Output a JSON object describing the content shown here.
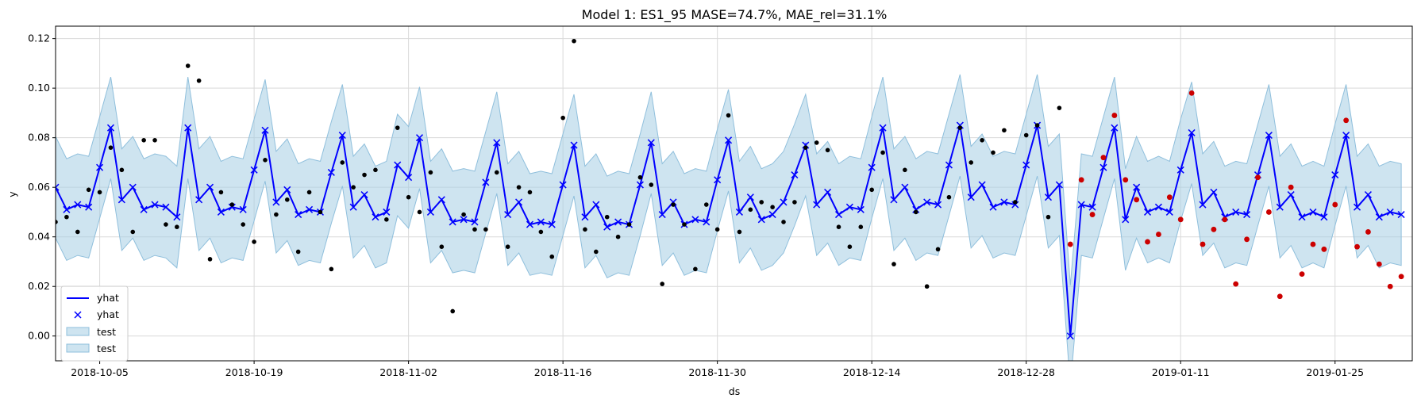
{
  "chart_data": {
    "type": "line",
    "title": "Model 1: ES1_95 MASE=74.7%, MAE_rel=31.1%",
    "xlabel": "ds",
    "ylabel": "y",
    "x_start": "2018-10-01",
    "x_end": "2019-02-01",
    "ylim": [
      -0.01,
      0.125
    ],
    "grid": true,
    "legend_position": "lower-left",
    "x_tick_labels": [
      "2018-10-05",
      "2018-10-19",
      "2018-11-02",
      "2018-11-16",
      "2018-11-30",
      "2018-12-14",
      "2018-12-28",
      "2019-01-11",
      "2019-01-25"
    ],
    "y_tick_labels": [
      "0.00",
      "0.02",
      "0.04",
      "0.06",
      "0.08",
      "0.10",
      "0.12"
    ],
    "legend": [
      "yhat",
      "yhat",
      "test",
      "test"
    ],
    "colors": {
      "line": "#0000ff",
      "band": "#a6cee3",
      "band_edge": "#8fbfdc",
      "actual": "#000000",
      "test_point": "#cc0000"
    },
    "yhat": [
      [
        "2018-10-01",
        0.06
      ],
      [
        "2018-10-02",
        0.051
      ],
      [
        "2018-10-03",
        0.053
      ],
      [
        "2018-10-04",
        0.052
      ],
      [
        "2018-10-05",
        0.068
      ],
      [
        "2018-10-06",
        0.084
      ],
      [
        "2018-10-07",
        0.055
      ],
      [
        "2018-10-08",
        0.06
      ],
      [
        "2018-10-09",
        0.051
      ],
      [
        "2018-10-10",
        0.053
      ],
      [
        "2018-10-11",
        0.052
      ],
      [
        "2018-10-12",
        0.048
      ],
      [
        "2018-10-13",
        0.084
      ],
      [
        "2018-10-14",
        0.055
      ],
      [
        "2018-10-15",
        0.06
      ],
      [
        "2018-10-16",
        0.05
      ],
      [
        "2018-10-17",
        0.052
      ],
      [
        "2018-10-18",
        0.051
      ],
      [
        "2018-10-19",
        0.067
      ],
      [
        "2018-10-20",
        0.083
      ],
      [
        "2018-10-21",
        0.054
      ],
      [
        "2018-10-22",
        0.059
      ],
      [
        "2018-10-23",
        0.049
      ],
      [
        "2018-10-24",
        0.051
      ],
      [
        "2018-10-25",
        0.05
      ],
      [
        "2018-10-26",
        0.066
      ],
      [
        "2018-10-27",
        0.081
      ],
      [
        "2018-10-28",
        0.052
      ],
      [
        "2018-10-29",
        0.057
      ],
      [
        "2018-10-30",
        0.048
      ],
      [
        "2018-10-31",
        0.05
      ],
      [
        "2018-11-01",
        0.069
      ],
      [
        "2018-11-02",
        0.064
      ],
      [
        "2018-11-03",
        0.08
      ],
      [
        "2018-11-04",
        0.05
      ],
      [
        "2018-11-05",
        0.055
      ],
      [
        "2018-11-06",
        0.046
      ],
      [
        "2018-11-07",
        0.047
      ],
      [
        "2018-11-08",
        0.046
      ],
      [
        "2018-11-09",
        0.062
      ],
      [
        "2018-11-10",
        0.078
      ],
      [
        "2018-11-11",
        0.049
      ],
      [
        "2018-11-12",
        0.054
      ],
      [
        "2018-11-13",
        0.045
      ],
      [
        "2018-11-14",
        0.046
      ],
      [
        "2018-11-15",
        0.045
      ],
      [
        "2018-11-16",
        0.061
      ],
      [
        "2018-11-17",
        0.077
      ],
      [
        "2018-11-18",
        0.048
      ],
      [
        "2018-11-19",
        0.053
      ],
      [
        "2018-11-20",
        0.044
      ],
      [
        "2018-11-21",
        0.046
      ],
      [
        "2018-11-22",
        0.045
      ],
      [
        "2018-11-23",
        0.061
      ],
      [
        "2018-11-24",
        0.078
      ],
      [
        "2018-11-25",
        0.049
      ],
      [
        "2018-11-26",
        0.054
      ],
      [
        "2018-11-27",
        0.045
      ],
      [
        "2018-11-28",
        0.047
      ],
      [
        "2018-11-29",
        0.046
      ],
      [
        "2018-11-30",
        0.063
      ],
      [
        "2018-12-01",
        0.079
      ],
      [
        "2018-12-02",
        0.05
      ],
      [
        "2018-12-03",
        0.056
      ],
      [
        "2018-12-04",
        0.047
      ],
      [
        "2018-12-05",
        0.049
      ],
      [
        "2018-12-06",
        0.054
      ],
      [
        "2018-12-07",
        0.065
      ],
      [
        "2018-12-08",
        0.077
      ],
      [
        "2018-12-09",
        0.053
      ],
      [
        "2018-12-10",
        0.058
      ],
      [
        "2018-12-11",
        0.049
      ],
      [
        "2018-12-12",
        0.052
      ],
      [
        "2018-12-13",
        0.051
      ],
      [
        "2018-12-14",
        0.068
      ],
      [
        "2018-12-15",
        0.084
      ],
      [
        "2018-12-16",
        0.055
      ],
      [
        "2018-12-17",
        0.06
      ],
      [
        "2018-12-18",
        0.051
      ],
      [
        "2018-12-19",
        0.054
      ],
      [
        "2018-12-20",
        0.053
      ],
      [
        "2018-12-21",
        0.069
      ],
      [
        "2018-12-22",
        0.085
      ],
      [
        "2018-12-23",
        0.056
      ],
      [
        "2018-12-24",
        0.061
      ],
      [
        "2018-12-25",
        0.052
      ],
      [
        "2018-12-26",
        0.054
      ],
      [
        "2018-12-27",
        0.053
      ],
      [
        "2018-12-28",
        0.069
      ],
      [
        "2018-12-29",
        0.085
      ],
      [
        "2018-12-30",
        0.056
      ],
      [
        "2018-12-31",
        0.061
      ],
      [
        "2019-01-01",
        0.0
      ],
      [
        "2019-01-02",
        0.053
      ],
      [
        "2019-01-03",
        0.052
      ],
      [
        "2019-01-04",
        0.068
      ],
      [
        "2019-01-05",
        0.084
      ],
      [
        "2019-01-06",
        0.047
      ],
      [
        "2019-01-07",
        0.06
      ],
      [
        "2019-01-08",
        0.05
      ],
      [
        "2019-01-09",
        0.052
      ],
      [
        "2019-01-10",
        0.05
      ],
      [
        "2019-01-11",
        0.067
      ],
      [
        "2019-01-12",
        0.082
      ],
      [
        "2019-01-13",
        0.053
      ],
      [
        "2019-01-14",
        0.058
      ],
      [
        "2019-01-15",
        0.048
      ],
      [
        "2019-01-16",
        0.05
      ],
      [
        "2019-01-17",
        0.049
      ],
      [
        "2019-01-18",
        0.065
      ],
      [
        "2019-01-19",
        0.081
      ],
      [
        "2019-01-20",
        0.052
      ],
      [
        "2019-01-21",
        0.057
      ],
      [
        "2019-01-22",
        0.048
      ],
      [
        "2019-01-23",
        0.05
      ],
      [
        "2019-01-24",
        0.048
      ],
      [
        "2019-01-25",
        0.065
      ],
      [
        "2019-01-26",
        0.081
      ],
      [
        "2019-01-27",
        0.052
      ],
      [
        "2019-01-28",
        0.057
      ],
      [
        "2019-01-29",
        0.048
      ],
      [
        "2019-01-30",
        0.05
      ],
      [
        "2019-01-31",
        0.049
      ]
    ],
    "band_halfwidth": 0.0205,
    "actual": [
      [
        "2018-10-01",
        0.046
      ],
      [
        "2018-10-02",
        0.048
      ],
      [
        "2018-10-03",
        0.042
      ],
      [
        "2018-10-04",
        0.059
      ],
      [
        "2018-10-05",
        0.058
      ],
      [
        "2018-10-06",
        0.076
      ],
      [
        "2018-10-07",
        0.067
      ],
      [
        "2018-10-08",
        0.042
      ],
      [
        "2018-10-09",
        0.079
      ],
      [
        "2018-10-10",
        0.079
      ],
      [
        "2018-10-11",
        0.045
      ],
      [
        "2018-10-12",
        0.044
      ],
      [
        "2018-10-13",
        0.109
      ],
      [
        "2018-10-14",
        0.103
      ],
      [
        "2018-10-15",
        0.031
      ],
      [
        "2018-10-16",
        0.058
      ],
      [
        "2018-10-17",
        0.053
      ],
      [
        "2018-10-18",
        0.045
      ],
      [
        "2018-10-19",
        0.038
      ],
      [
        "2018-10-20",
        0.071
      ],
      [
        "2018-10-21",
        0.049
      ],
      [
        "2018-10-22",
        0.055
      ],
      [
        "2018-10-23",
        0.034
      ],
      [
        "2018-10-24",
        0.058
      ],
      [
        "2018-10-25",
        0.05
      ],
      [
        "2018-10-26",
        0.027
      ],
      [
        "2018-10-27",
        0.07
      ],
      [
        "2018-10-28",
        0.06
      ],
      [
        "2018-10-29",
        0.065
      ],
      [
        "2018-10-30",
        0.067
      ],
      [
        "2018-10-31",
        0.047
      ],
      [
        "2018-11-01",
        0.084
      ],
      [
        "2018-11-02",
        0.056
      ],
      [
        "2018-11-03",
        0.05
      ],
      [
        "2018-11-04",
        0.066
      ],
      [
        "2018-11-05",
        0.036
      ],
      [
        "2018-11-06",
        0.01
      ],
      [
        "2018-11-07",
        0.049
      ],
      [
        "2018-11-08",
        0.043
      ],
      [
        "2018-11-09",
        0.043
      ],
      [
        "2018-11-10",
        0.066
      ],
      [
        "2018-11-11",
        0.036
      ],
      [
        "2018-11-12",
        0.06
      ],
      [
        "2018-11-13",
        0.058
      ],
      [
        "2018-11-14",
        0.042
      ],
      [
        "2018-11-15",
        0.032
      ],
      [
        "2018-11-16",
        0.088
      ],
      [
        "2018-11-17",
        0.119
      ],
      [
        "2018-11-18",
        0.043
      ],
      [
        "2018-11-19",
        0.034
      ],
      [
        "2018-11-20",
        0.048
      ],
      [
        "2018-11-21",
        0.04
      ],
      [
        "2018-11-22",
        0.045
      ],
      [
        "2018-11-23",
        0.064
      ],
      [
        "2018-11-24",
        0.061
      ],
      [
        "2018-11-25",
        0.021
      ],
      [
        "2018-11-26",
        0.053
      ],
      [
        "2018-11-27",
        0.045
      ],
      [
        "2018-11-28",
        0.027
      ],
      [
        "2018-11-29",
        0.053
      ],
      [
        "2018-11-30",
        0.043
      ],
      [
        "2018-12-01",
        0.089
      ],
      [
        "2018-12-02",
        0.042
      ],
      [
        "2018-12-03",
        0.051
      ],
      [
        "2018-12-04",
        0.054
      ],
      [
        "2018-12-05",
        0.052
      ],
      [
        "2018-12-06",
        0.046
      ],
      [
        "2018-12-07",
        0.054
      ],
      [
        "2018-12-08",
        0.076
      ],
      [
        "2018-12-09",
        0.078
      ],
      [
        "2018-12-10",
        0.075
      ],
      [
        "2018-12-11",
        0.044
      ],
      [
        "2018-12-12",
        0.036
      ],
      [
        "2018-12-13",
        0.044
      ],
      [
        "2018-12-14",
        0.059
      ],
      [
        "2018-12-15",
        0.074
      ],
      [
        "2018-12-16",
        0.029
      ],
      [
        "2018-12-17",
        0.067
      ],
      [
        "2018-12-18",
        0.05
      ],
      [
        "2018-12-19",
        0.02
      ],
      [
        "2018-12-20",
        0.035
      ],
      [
        "2018-12-21",
        0.056
      ],
      [
        "2018-12-22",
        0.084
      ],
      [
        "2018-12-23",
        0.07
      ],
      [
        "2018-12-24",
        0.079
      ],
      [
        "2018-12-25",
        0.074
      ],
      [
        "2018-12-26",
        0.083
      ],
      [
        "2018-12-27",
        0.054
      ],
      [
        "2018-12-28",
        0.081
      ],
      [
        "2018-12-29",
        0.085
      ],
      [
        "2018-12-30",
        0.048
      ],
      [
        "2018-12-31",
        0.092
      ]
    ],
    "test": [
      [
        "2019-01-01",
        0.037
      ],
      [
        "2019-01-02",
        0.063
      ],
      [
        "2019-01-03",
        0.049
      ],
      [
        "2019-01-04",
        0.072
      ],
      [
        "2019-01-05",
        0.089
      ],
      [
        "2019-01-06",
        0.063
      ],
      [
        "2019-01-07",
        0.055
      ],
      [
        "2019-01-08",
        0.038
      ],
      [
        "2019-01-09",
        0.041
      ],
      [
        "2019-01-10",
        0.056
      ],
      [
        "2019-01-11",
        0.047
      ],
      [
        "2019-01-12",
        0.098
      ],
      [
        "2019-01-13",
        0.037
      ],
      [
        "2019-01-14",
        0.043
      ],
      [
        "2019-01-15",
        0.047
      ],
      [
        "2019-01-16",
        0.021
      ],
      [
        "2019-01-17",
        0.039
      ],
      [
        "2019-01-18",
        0.064
      ],
      [
        "2019-01-19",
        0.05
      ],
      [
        "2019-01-20",
        0.016
      ],
      [
        "2019-01-21",
        0.06
      ],
      [
        "2019-01-22",
        0.025
      ],
      [
        "2019-01-23",
        0.037
      ],
      [
        "2019-01-24",
        0.035
      ],
      [
        "2019-01-25",
        0.053
      ],
      [
        "2019-01-26",
        0.087
      ],
      [
        "2019-01-27",
        0.036
      ],
      [
        "2019-01-28",
        0.042
      ],
      [
        "2019-01-29",
        0.029
      ],
      [
        "2019-01-30",
        0.02
      ],
      [
        "2019-01-31",
        0.024
      ]
    ]
  }
}
